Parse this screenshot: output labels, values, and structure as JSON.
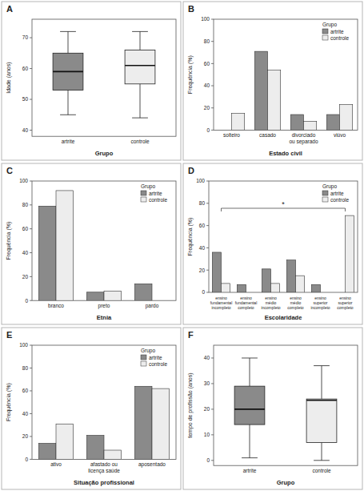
{
  "chart_data": [
    {
      "type": "box",
      "title": "A",
      "x_label": "Grupo",
      "y_label": "Idade (anos)",
      "categories": [
        "artrite",
        "controle"
      ],
      "colors": [
        "#8a8a8a",
        "#ededed"
      ],
      "boxes": [
        {
          "min": 45,
          "q1": 53,
          "median": 59,
          "q3": 65,
          "max": 72
        },
        {
          "min": 44,
          "q1": 55,
          "median": 61,
          "q3": 66,
          "max": 72
        }
      ],
      "ylim": [
        38,
        76
      ],
      "yticks": [
        40,
        50,
        60,
        70
      ]
    },
    {
      "type": "bar",
      "title": "B",
      "x_label": "Estado civil",
      "y_label": "Frequência (%)",
      "legend_title": "Grupo",
      "legend": "top-right",
      "categories": [
        "solteiro",
        "casado",
        "divorciado ou separado",
        "viúvo"
      ],
      "series": [
        {
          "name": "artrite",
          "color": "#8a8a8a",
          "values": [
            0,
            71,
            14,
            14
          ]
        },
        {
          "name": "controle",
          "color": "#ededed",
          "values": [
            15,
            54,
            8,
            23
          ]
        }
      ],
      "ylim": [
        0,
        100
      ],
      "yticks": [
        0,
        20,
        40,
        60,
        80,
        100
      ]
    },
    {
      "type": "bar",
      "title": "C",
      "x_label": "Etnia",
      "y_label": "Frequência (%)",
      "legend_title": "Grupo",
      "legend": "top-right",
      "categories": [
        "branco",
        "preto",
        "pardo"
      ],
      "series": [
        {
          "name": "artrite",
          "color": "#8a8a8a",
          "values": [
            79,
            7,
            14
          ]
        },
        {
          "name": "controle",
          "color": "#ededed",
          "values": [
            92,
            8,
            0
          ]
        }
      ],
      "ylim": [
        0,
        100
      ],
      "yticks": [
        0,
        20,
        40,
        60,
        80,
        100
      ]
    },
    {
      "type": "bar",
      "title": "D",
      "x_label": "Escolaridade",
      "y_label": "Frequência (%)",
      "legend_title": "Grupo",
      "legend": "top-right",
      "annotation": "*",
      "categories": [
        "ensino fundamental incompleto",
        "ensino fundamental completo",
        "ensino médio incompleto",
        "ensino médio completo",
        "ensino superior incompleto",
        "ensino superior completo"
      ],
      "series": [
        {
          "name": "artrite",
          "color": "#8a8a8a",
          "values": [
            36,
            7,
            21,
            29,
            7,
            0
          ]
        },
        {
          "name": "controle",
          "color": "#ededed",
          "values": [
            8,
            0,
            8,
            15,
            0,
            69
          ]
        }
      ],
      "ylim": [
        0,
        100
      ],
      "yticks": [
        0,
        20,
        40,
        60,
        80,
        100
      ]
    },
    {
      "type": "bar",
      "title": "E",
      "x_label": "Situação profissional",
      "y_label": "Frequência (%)",
      "legend_title": "Grupo",
      "legend": "top-right",
      "categories": [
        "ativo",
        "afastado ou licença saúde",
        "aposentado"
      ],
      "series": [
        {
          "name": "artrite",
          "color": "#8a8a8a",
          "values": [
            14,
            21,
            64
          ]
        },
        {
          "name": "controle",
          "color": "#ededed",
          "values": [
            31,
            8,
            62
          ]
        }
      ],
      "ylim": [
        0,
        100
      ],
      "yticks": [
        0,
        20,
        40,
        60,
        80,
        100
      ]
    },
    {
      "type": "box",
      "title": "F",
      "x_label": "Grupo",
      "y_label": "tempo de profissão (anos)",
      "categories": [
        "artrite",
        "controle"
      ],
      "colors": [
        "#8a8a8a",
        "#ededed"
      ],
      "boxes": [
        {
          "min": 1,
          "q1": 14,
          "median": 20,
          "q3": 29,
          "max": 40
        },
        {
          "min": 0,
          "q1": 7,
          "median": 23.5,
          "q3": 24,
          "max": 37
        }
      ],
      "ylim": [
        -2,
        45
      ],
      "yticks": [
        0,
        10,
        20,
        30,
        40
      ]
    }
  ]
}
